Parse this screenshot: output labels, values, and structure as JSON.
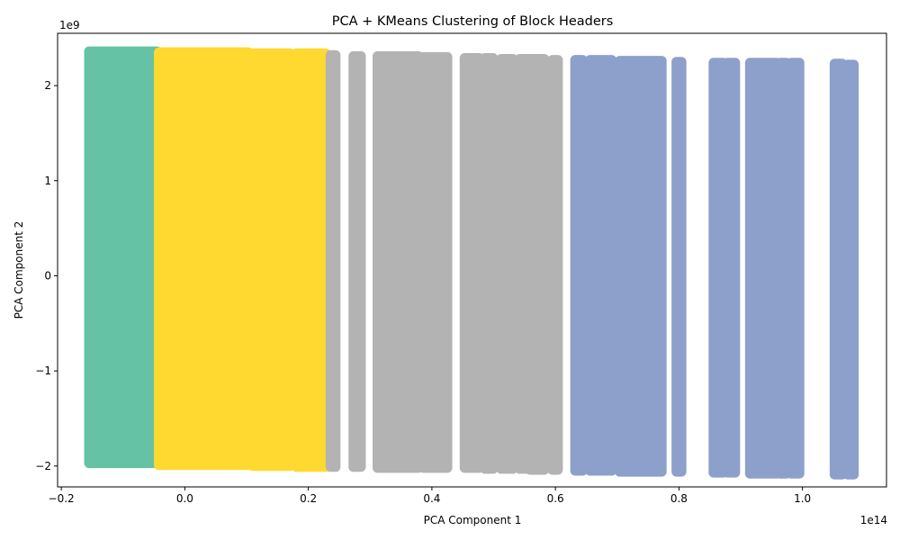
{
  "chart_data": {
    "type": "scatter",
    "title": "PCA + KMeans Clustering of Block Headers",
    "xlabel": "PCA Component 1",
    "ylabel": "PCA Component 2",
    "x_offset_text": "1e14",
    "y_offset_text": "1e9",
    "x_scale": 100000000000000.0,
    "y_scale": 1000000000.0,
    "xlim": [
      -0.206,
      1.136
    ],
    "ylim": [
      -2.22,
      2.55
    ],
    "xticks": [
      -0.2,
      0.0,
      0.2,
      0.4,
      0.6,
      0.8,
      1.0
    ],
    "xtick_labels": [
      "−0.2",
      "0.0",
      "0.2",
      "0.4",
      "0.6",
      "0.8",
      "1.0"
    ],
    "yticks": [
      -2,
      -1,
      0,
      1,
      2
    ],
    "ytick_labels": [
      "−2",
      "−1",
      "0",
      "1",
      "2"
    ],
    "grid": false,
    "legend": "none",
    "clusters": [
      {
        "color": "#66c2a5",
        "bands": [
          [
            -0.155,
            -0.045,
            -1.97,
            2.36
          ]
        ]
      },
      {
        "color": "#ffd92f",
        "bands": [
          [
            -0.042,
            0.103,
            -1.99,
            2.35
          ],
          [
            0.11,
            0.17,
            -2.0,
            2.34
          ],
          [
            0.181,
            0.228,
            -2.01,
            2.34
          ]
        ]
      },
      {
        "color": "#b3b3b3",
        "bands": [
          [
            0.236,
            0.244,
            -2.01,
            2.32
          ],
          [
            0.273,
            0.285,
            -2.01,
            2.31
          ],
          [
            0.312,
            0.378,
            -2.02,
            2.31
          ],
          [
            0.386,
            0.425,
            -2.02,
            2.3
          ],
          [
            0.453,
            0.463,
            -2.02,
            2.29
          ],
          [
            0.466,
            0.477,
            -2.02,
            2.29
          ],
          [
            0.486,
            0.499,
            -2.03,
            2.29
          ],
          [
            0.512,
            0.531,
            -2.03,
            2.28
          ],
          [
            0.542,
            0.556,
            -2.03,
            2.28
          ],
          [
            0.559,
            0.575,
            -2.04,
            2.28
          ],
          [
            0.576,
            0.582,
            -2.04,
            2.28
          ],
          [
            0.595,
            0.604,
            -2.04,
            2.27
          ]
        ]
      },
      {
        "color": "#8da0cb",
        "bands": [
          [
            0.632,
            0.644,
            -2.05,
            2.27
          ],
          [
            0.656,
            0.691,
            -2.05,
            2.27
          ],
          [
            0.704,
            0.772,
            -2.06,
            2.26
          ],
          [
            0.796,
            0.804,
            -2.06,
            2.25
          ],
          [
            0.856,
            0.872,
            -2.07,
            2.24
          ],
          [
            0.879,
            0.891,
            -2.07,
            2.24
          ],
          [
            0.915,
            0.941,
            -2.08,
            2.24
          ],
          [
            0.944,
            0.958,
            -2.08,
            2.24
          ],
          [
            0.964,
            0.974,
            -2.08,
            2.24
          ],
          [
            0.982,
            0.995,
            -2.08,
            2.24
          ],
          [
            1.052,
            1.064,
            -2.09,
            2.23
          ],
          [
            1.073,
            1.083,
            -2.09,
            2.22
          ]
        ]
      }
    ]
  }
}
